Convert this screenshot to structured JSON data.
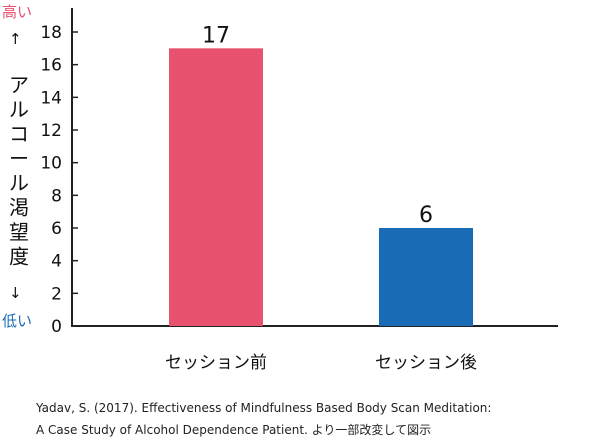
{
  "y_axis_annotations": {
    "high_text": "高い",
    "high_arrow": "↑",
    "label_chars": [
      "ア",
      "ル",
      "コ",
      "ー",
      "ル",
      "渇",
      "望",
      "度"
    ],
    "low_arrow": "↓",
    "low_text": "低い",
    "high_color": "#e8526f",
    "low_color": "#1a6bb5"
  },
  "caption": {
    "line1": "Yadav, S. (2017). Effectiveness of Mindfulness Based Body Scan Meditation:",
    "line2": "A Case Study of Alcohol Dependence Patient. より一部改変して図示"
  },
  "chart_data": {
    "type": "bar",
    "categories": [
      "セッション前",
      "セッション後"
    ],
    "values": [
      17,
      6
    ],
    "colors": [
      "#e8526f",
      "#1a6bb5"
    ],
    "data_labels": [
      "17",
      "6"
    ],
    "yticks": [
      0,
      2,
      4,
      6,
      8,
      10,
      12,
      14,
      16,
      18
    ],
    "ylim": [
      0,
      18.9
    ],
    "ylabel": "アルコール渇望度",
    "xlabel": "",
    "title": "",
    "grid": false,
    "legend": false
  }
}
